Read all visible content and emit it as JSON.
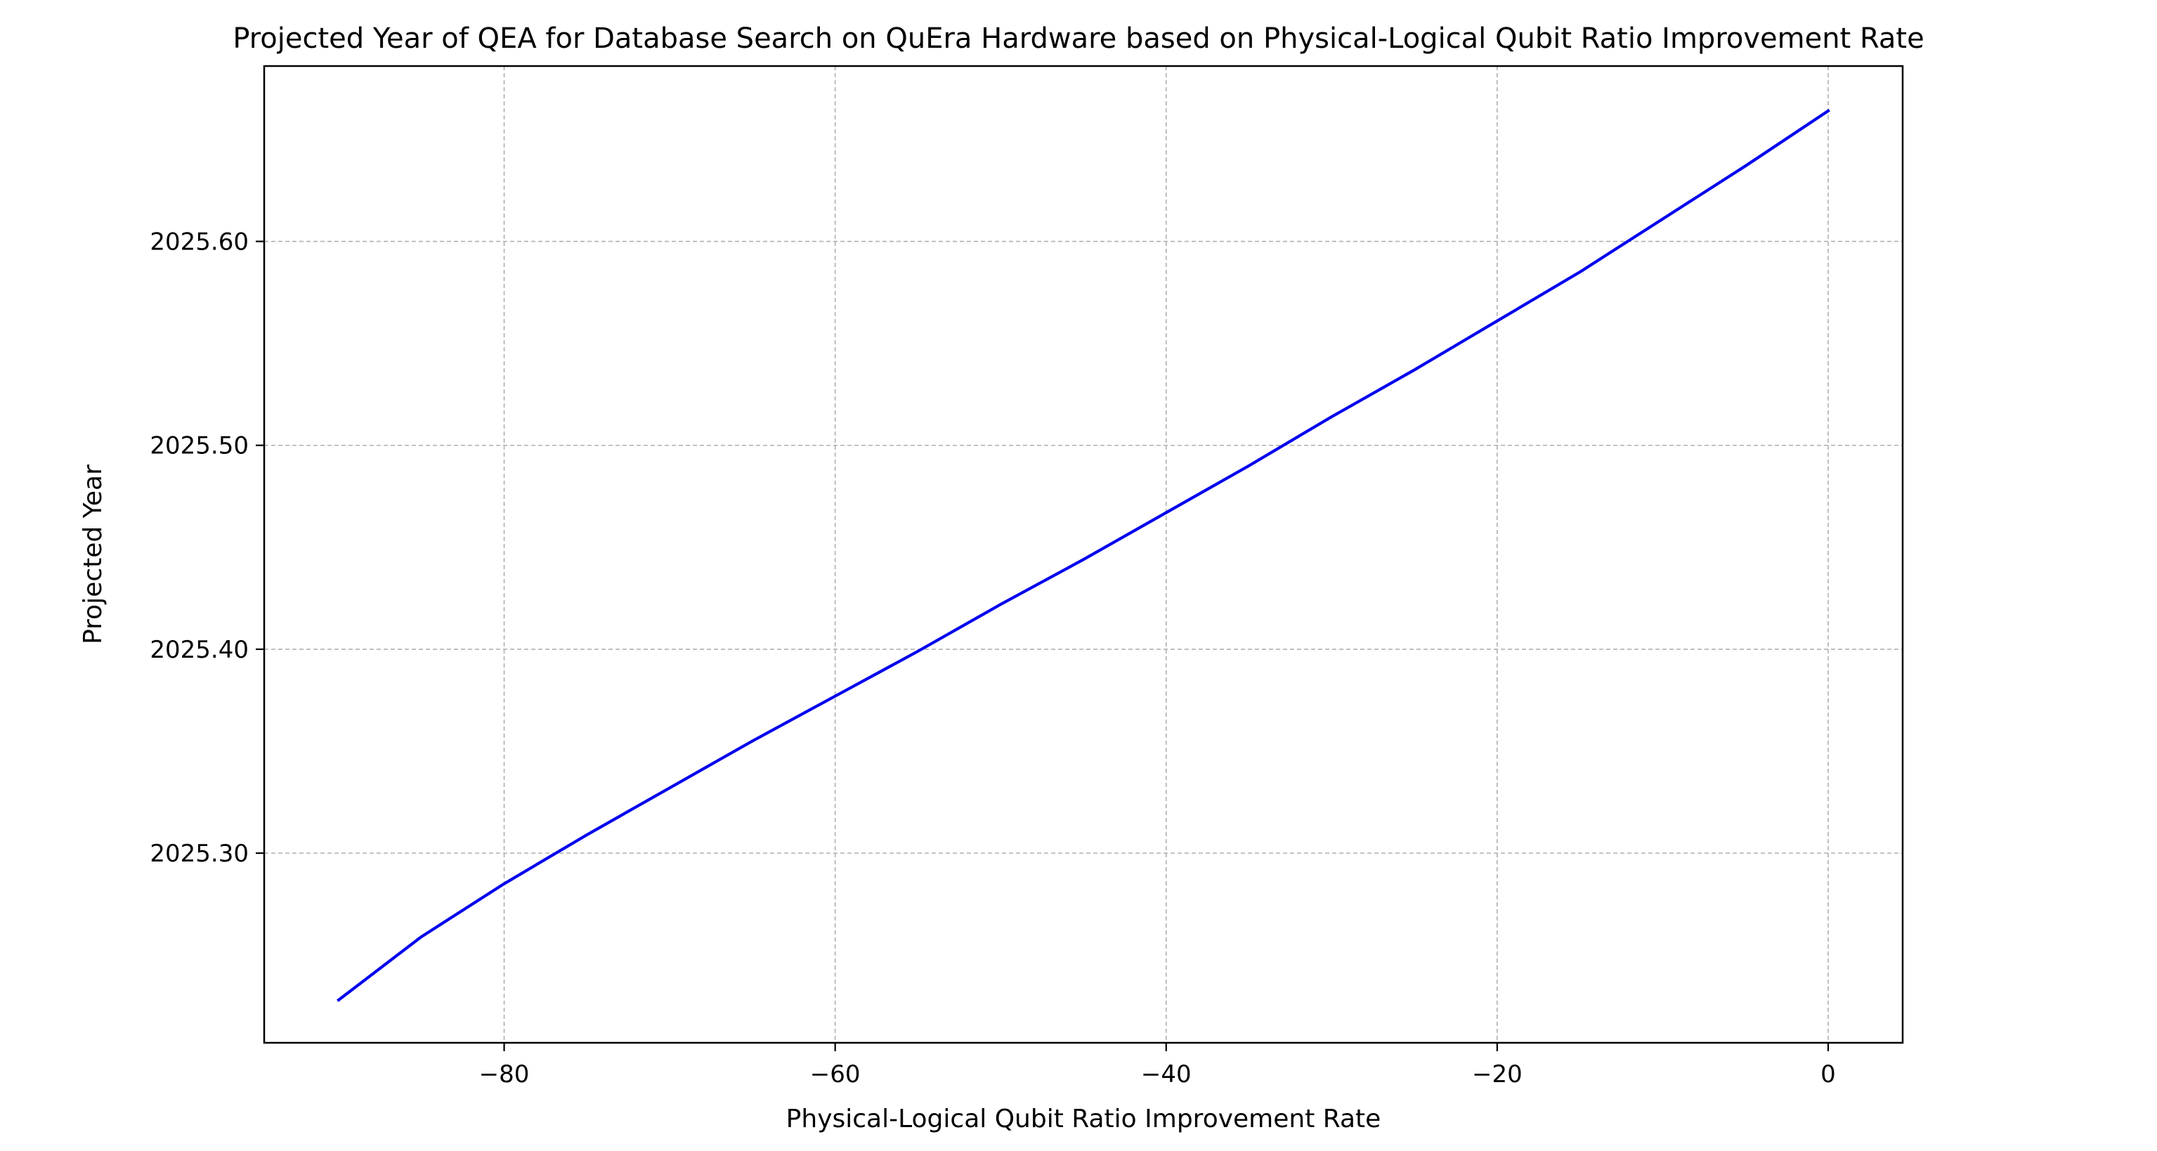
{
  "chart_data": {
    "type": "line",
    "title": "Projected Year of QEA for Database Search on QuEra Hardware based on Physical-Logical Qubit Ratio Improvement Rate",
    "xlabel": "Physical-Logical Qubit Ratio Improvement Rate",
    "ylabel": "Projected Year",
    "xlim": [
      -94.5,
      4.5
    ],
    "ylim": [
      2025.207,
      2025.686
    ],
    "xticks": [
      -80,
      -60,
      -40,
      -20,
      0
    ],
    "xtick_labels": [
      "−80",
      "−60",
      "−40",
      "−20",
      "0"
    ],
    "yticks": [
      2025.3,
      2025.4,
      2025.5,
      2025.6
    ],
    "ytick_labels": [
      "2025.30",
      "2025.40",
      "2025.50",
      "2025.60"
    ],
    "grid": true,
    "legend": "none",
    "series": [
      {
        "color": "#0000ee",
        "x": [
          -90,
          -85,
          -80,
          -75,
          -70,
          -65,
          -60,
          -55,
          -50,
          -45,
          -40,
          -35,
          -30,
          -25,
          -20,
          -15,
          -10,
          -5,
          0
        ],
        "y": [
          2025.228,
          2025.259,
          2025.285,
          2025.309,
          2025.332,
          2025.355,
          2025.377,
          2025.399,
          2025.422,
          2025.444,
          2025.467,
          2025.49,
          2025.514,
          2025.537,
          2025.561,
          2025.585,
          2025.611,
          2025.637,
          2025.664
        ]
      }
    ],
    "gridline_color": "#b0b0b0",
    "axes_color": "#000000"
  }
}
